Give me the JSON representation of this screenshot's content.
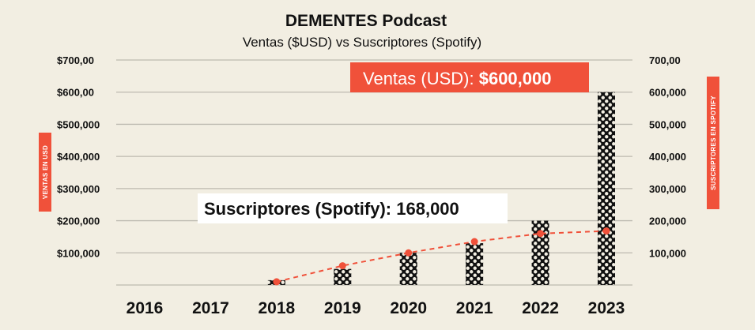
{
  "chart_data": {
    "type": "bar",
    "title": "DEMENTES Podcast",
    "subtitle": "Ventas ($USD) vs Suscriptores (Spotify)",
    "categories": [
      "2016",
      "2017",
      "2018",
      "2019",
      "2020",
      "2021",
      "2022",
      "2023"
    ],
    "series": [
      {
        "name": "Ventas en USD",
        "type": "bar",
        "values": [
          0,
          0,
          15000,
          50000,
          100000,
          130000,
          200000,
          600000
        ]
      },
      {
        "name": "Suscriptores en Spotify",
        "type": "line",
        "values": [
          null,
          null,
          10000,
          60000,
          100000,
          135000,
          160000,
          168000
        ]
      }
    ],
    "ylabel_left": "VENTAS EN USD",
    "ylabel_right": "SUSCRIPTORES EN SPOTIFY",
    "ylim_left": [
      0,
      700000
    ],
    "ylim_right": [
      0,
      700000
    ],
    "yticks_left": [
      "$100,000",
      "$200,000",
      "$300,000",
      "$400,000",
      "$500,000",
      "$600,00",
      "$700,00"
    ],
    "yticks_right": [
      "100,000",
      "200,000",
      "300,000",
      "400,000",
      "500,000",
      "600,000",
      "700,00"
    ],
    "annotations": {
      "sales_prefix": "Ventas (USD): ",
      "sales_value": "$600,000",
      "subs_prefix": "Suscriptores (Spotify): ",
      "subs_value": "168,000"
    },
    "colors": {
      "background": "#f2eee2",
      "accent": "#f0513a",
      "bar": "#111111",
      "grid": "#bdbab0"
    }
  }
}
